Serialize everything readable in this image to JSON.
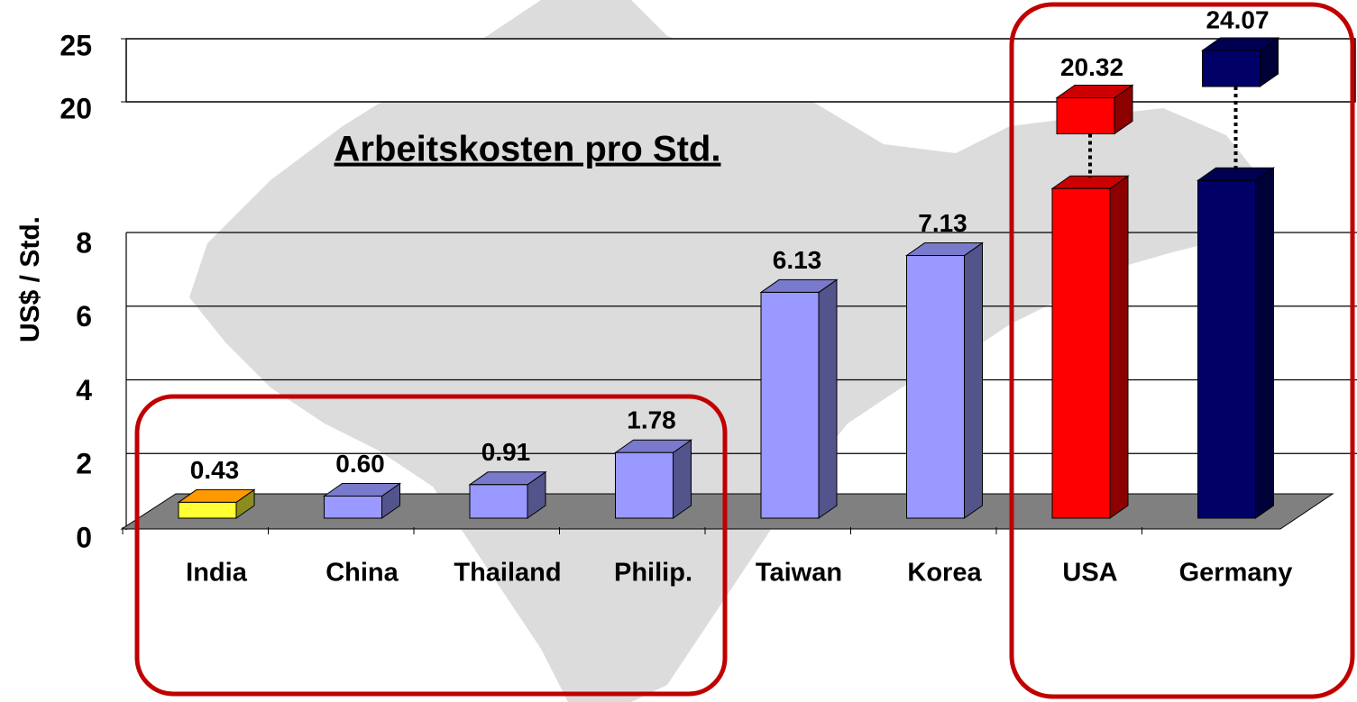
{
  "chart_data": {
    "type": "bar3d",
    "title": "Arbeitskosten pro Std.",
    "y_label": "US$ / Std.",
    "categories": [
      "India",
      "China",
      "Thailand",
      "Philip.",
      "Taiwan",
      "Korea",
      "USA",
      "Germany"
    ],
    "values": [
      0.43,
      0.6,
      0.91,
      1.78,
      6.13,
      7.13,
      20.32,
      24.07
    ],
    "value_labels": [
      "0.43",
      "0.60",
      "0.91",
      "1.78",
      "6.13",
      "7.13",
      "20.32",
      "24.07"
    ],
    "colors": [
      "#ffff33",
      "#9999ff",
      "#9999ff",
      "#9999ff",
      "#9999ff",
      "#9999ff",
      "#ff0000",
      "#000066"
    ],
    "ylim": [
      0,
      8
    ],
    "yticks": [
      0,
      2,
      4,
      6,
      8
    ],
    "upper_ylim": [
      20,
      25
    ],
    "upper_yticks": [
      20,
      25
    ],
    "grid": true
  }
}
